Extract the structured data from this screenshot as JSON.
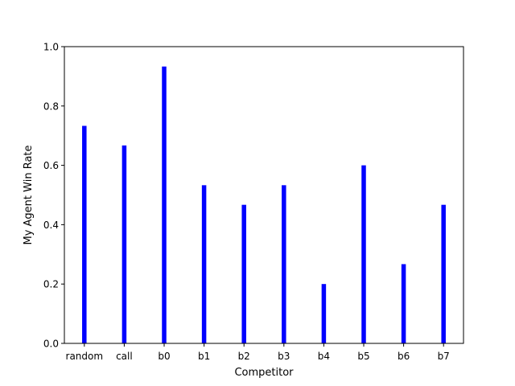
{
  "chart_data": {
    "type": "bar",
    "title": "",
    "xlabel": "Competitor",
    "ylabel": "My Agent Win Rate",
    "categories": [
      "random",
      "call",
      "b0",
      "b1",
      "b2",
      "b3",
      "b4",
      "b5",
      "b6",
      "b7"
    ],
    "values": [
      0.733,
      0.667,
      0.933,
      0.533,
      0.467,
      0.533,
      0.2,
      0.6,
      0.267,
      0.467
    ],
    "ylim": [
      0,
      1.0
    ],
    "yticks": [
      "0.0",
      "0.2",
      "0.4",
      "0.6",
      "0.8",
      "1.0"
    ],
    "grid": false,
    "bar_color": "#0000ff"
  }
}
